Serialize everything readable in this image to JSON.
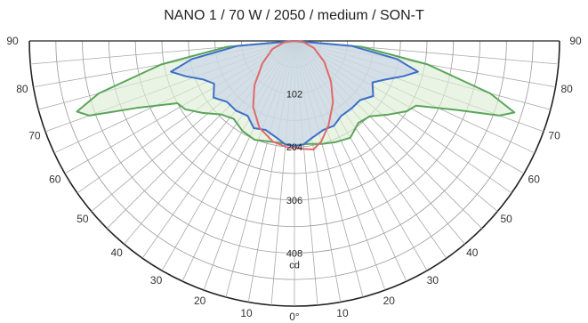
{
  "chart_data": {
    "type": "polar",
    "title": "NANO 1 / 70 W / 2050 / medium / SON-T",
    "radial_unit": "cd",
    "radial_ticks": [
      102,
      204,
      306,
      408
    ],
    "radial_max": 510,
    "angle_labels_left": [
      "90",
      "80",
      "70",
      "60",
      "50",
      "40",
      "30",
      "20",
      "10"
    ],
    "angle_labels_right": [
      "90",
      "80",
      "70",
      "60",
      "50",
      "40",
      "30",
      "20",
      "10"
    ],
    "angle_bottom_label": "0°",
    "series": [
      {
        "color": "#5aa55a",
        "fill": "#dfeed5",
        "points": [
          {
            "angle": -90,
            "r": 0
          },
          {
            "angle": -85,
            "r": 130
          },
          {
            "angle": -80,
            "r": 260
          },
          {
            "angle": -75,
            "r": 390
          },
          {
            "angle": -72,
            "r": 440
          },
          {
            "angle": -70,
            "r": 420
          },
          {
            "angle": -67,
            "r": 330
          },
          {
            "angle": -62,
            "r": 255
          },
          {
            "angle": -58,
            "r": 248
          },
          {
            "angle": -52,
            "r": 225
          },
          {
            "angle": -45,
            "r": 200
          },
          {
            "angle": -38,
            "r": 190
          },
          {
            "angle": -30,
            "r": 200
          },
          {
            "angle": -22,
            "r": 205
          },
          {
            "angle": -15,
            "r": 200
          },
          {
            "angle": -8,
            "r": 198
          },
          {
            "angle": 0,
            "r": 200
          },
          {
            "angle": 8,
            "r": 200
          },
          {
            "angle": 15,
            "r": 205
          },
          {
            "angle": 22,
            "r": 210
          },
          {
            "angle": 30,
            "r": 215
          },
          {
            "angle": 38,
            "r": 200
          },
          {
            "angle": 45,
            "r": 205
          },
          {
            "angle": 52,
            "r": 230
          },
          {
            "angle": 58,
            "r": 255
          },
          {
            "angle": 62,
            "r": 265
          },
          {
            "angle": 67,
            "r": 340
          },
          {
            "angle": 70,
            "r": 420
          },
          {
            "angle": 72,
            "r": 445
          },
          {
            "angle": 75,
            "r": 390
          },
          {
            "angle": 80,
            "r": 260
          },
          {
            "angle": 85,
            "r": 130
          },
          {
            "angle": 90,
            "r": 0
          }
        ]
      },
      {
        "color": "#3d6fc9",
        "fill": "#c6d3e8",
        "points": [
          {
            "angle": -90,
            "r": 0
          },
          {
            "angle": -85,
            "r": 110
          },
          {
            "angle": -80,
            "r": 200
          },
          {
            "angle": -76,
            "r": 245
          },
          {
            "angle": -72,
            "r": 220
          },
          {
            "angle": -67,
            "r": 190
          },
          {
            "angle": -62,
            "r": 175
          },
          {
            "angle": -55,
            "r": 190
          },
          {
            "angle": -48,
            "r": 175
          },
          {
            "angle": -40,
            "r": 175
          },
          {
            "angle": -32,
            "r": 170
          },
          {
            "angle": -25,
            "r": 185
          },
          {
            "angle": -18,
            "r": 180
          },
          {
            "angle": -10,
            "r": 190
          },
          {
            "angle": -5,
            "r": 200
          },
          {
            "angle": 0,
            "r": 202
          },
          {
            "angle": 5,
            "r": 200
          },
          {
            "angle": 10,
            "r": 190
          },
          {
            "angle": 18,
            "r": 180
          },
          {
            "angle": 25,
            "r": 180
          },
          {
            "angle": 32,
            "r": 170
          },
          {
            "angle": 40,
            "r": 170
          },
          {
            "angle": 48,
            "r": 170
          },
          {
            "angle": 55,
            "r": 185
          },
          {
            "angle": 62,
            "r": 170
          },
          {
            "angle": 67,
            "r": 190
          },
          {
            "angle": 72,
            "r": 220
          },
          {
            "angle": 76,
            "r": 245
          },
          {
            "angle": 80,
            "r": 200
          },
          {
            "angle": 85,
            "r": 110
          },
          {
            "angle": 90,
            "r": 0
          }
        ]
      },
      {
        "color": "#e06a6a",
        "fill": "none",
        "points": [
          {
            "angle": -89,
            "r": 0
          },
          {
            "angle": -82,
            "r": 20
          },
          {
            "angle": -70,
            "r": 45
          },
          {
            "angle": -55,
            "r": 75
          },
          {
            "angle": -42,
            "r": 115
          },
          {
            "angle": -32,
            "r": 150
          },
          {
            "angle": -22,
            "r": 180
          },
          {
            "angle": -12,
            "r": 198
          },
          {
            "angle": -4,
            "r": 205
          },
          {
            "angle": 4,
            "r": 208
          },
          {
            "angle": 10,
            "r": 212
          },
          {
            "angle": 15,
            "r": 200
          },
          {
            "angle": 22,
            "r": 175
          },
          {
            "angle": 32,
            "r": 140
          },
          {
            "angle": 42,
            "r": 105
          },
          {
            "angle": 55,
            "r": 70
          },
          {
            "angle": 70,
            "r": 40
          },
          {
            "angle": 82,
            "r": 18
          },
          {
            "angle": 89,
            "r": 0
          }
        ]
      }
    ]
  }
}
